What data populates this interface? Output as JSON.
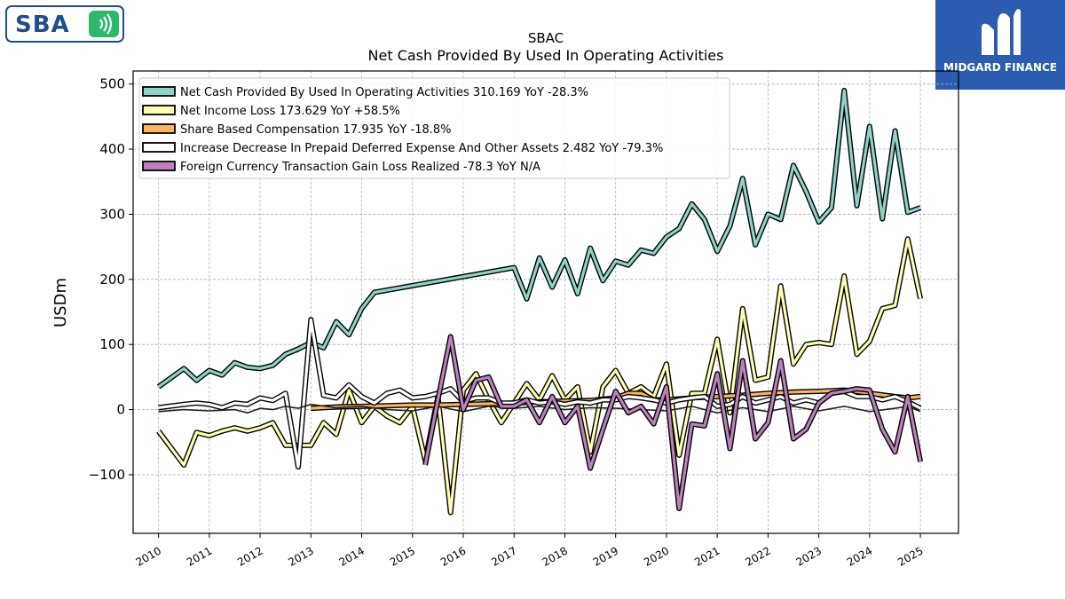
{
  "header": {
    "left_logo_text": "SBA",
    "left_logo_icon": "signal-waves-icon",
    "right_logo_text": "MIDGARD FINANCE",
    "right_logo_icon": "m-monogram-icon"
  },
  "chart_data": {
    "type": "line",
    "title": "SBAC",
    "subtitle": "Net Cash Provided By Used In Operating Activities",
    "xlabel": "",
    "ylabel": "USDm",
    "xlim": [
      2009.5,
      2025.75
    ],
    "ylim": [
      -190,
      520
    ],
    "yticks": [
      -100,
      0,
      100,
      200,
      300,
      400,
      500
    ],
    "ytick_labels": [
      "−100",
      "0",
      "100",
      "200",
      "300",
      "400",
      "500"
    ],
    "xticks": [
      2010,
      2011,
      2012,
      2013,
      2014,
      2015,
      2016,
      2017,
      2018,
      2019,
      2020,
      2021,
      2022,
      2023,
      2024,
      2025
    ],
    "xtick_labels": [
      "2010",
      "2011",
      "2012",
      "2013",
      "2014",
      "2015",
      "2016",
      "2017",
      "2018",
      "2019",
      "2020",
      "2021",
      "2022",
      "2023",
      "2024",
      "2025"
    ],
    "grid": true,
    "legend_position": "top-left",
    "series": [
      {
        "name": "Net Cash Provided By Used In Operating Activities  310.169 YoY -28.3%",
        "color": "#8dd3c7",
        "x": [
          2010.0,
          2010.5,
          2010.75,
          2011.0,
          2011.25,
          2011.5,
          2011.75,
          2012.0,
          2012.25,
          2012.5,
          2012.75,
          2013.0,
          2013.25,
          2013.5,
          2013.75,
          2014.0,
          2014.25,
          2017.0,
          2017.25,
          2017.5,
          2017.75,
          2018.0,
          2018.25,
          2018.5,
          2018.75,
          2019.0,
          2019.25,
          2019.5,
          2019.75,
          2020.0,
          2020.25,
          2020.5,
          2020.75,
          2021.0,
          2021.25,
          2021.5,
          2021.75,
          2022.0,
          2022.25,
          2022.5,
          2022.75,
          2023.0,
          2023.25,
          2023.5,
          2023.75,
          2024.0,
          2024.25,
          2024.5,
          2024.75,
          2025.0
        ],
        "y": [
          35,
          63,
          45,
          60,
          53,
          72,
          65,
          63,
          68,
          85,
          93,
          103,
          95,
          135,
          115,
          155,
          180,
          218,
          170,
          233,
          188,
          230,
          178,
          248,
          198,
          228,
          222,
          245,
          240,
          265,
          278,
          316,
          292,
          243,
          282,
          355,
          253,
          300,
          292,
          375,
          335,
          288,
          310,
          490,
          313,
          435,
          293,
          428,
          303,
          310
        ]
      },
      {
        "name": "Net Income Loss  173.629 YoY +58.5%",
        "color": "#ffffb3",
        "x": [
          2010.0,
          2010.5,
          2010.75,
          2011.0,
          2011.25,
          2011.5,
          2011.75,
          2012.0,
          2012.25,
          2012.5,
          2012.75,
          2013.0,
          2013.25,
          2013.5,
          2013.75,
          2014.0,
          2014.25,
          2014.5,
          2014.75,
          2015.0,
          2015.25,
          2015.5,
          2015.75,
          2016.0,
          2016.25,
          2016.5,
          2016.75,
          2017.0,
          2017.25,
          2017.5,
          2017.75,
          2018.0,
          2018.25,
          2018.5,
          2018.75,
          2019.0,
          2019.25,
          2019.5,
          2019.75,
          2020.0,
          2020.25,
          2020.5,
          2020.75,
          2021.0,
          2021.25,
          2021.5,
          2021.75,
          2022.0,
          2022.25,
          2022.5,
          2022.75,
          2023.0,
          2023.25,
          2023.5,
          2023.75,
          2024.0,
          2024.25,
          2024.5,
          2024.75,
          2025.0
        ],
        "y": [
          -33,
          -85,
          -35,
          -40,
          -33,
          -28,
          -33,
          -28,
          -20,
          -55,
          -55,
          -55,
          -20,
          -38,
          30,
          -20,
          5,
          -10,
          -20,
          5,
          -78,
          20,
          -158,
          30,
          55,
          15,
          -20,
          10,
          40,
          15,
          52,
          15,
          35,
          -65,
          35,
          60,
          25,
          35,
          20,
          70,
          -70,
          25,
          25,
          108,
          -5,
          155,
          45,
          50,
          190,
          70,
          100,
          103,
          100,
          205,
          85,
          105,
          155,
          160,
          262,
          170
        ]
      },
      {
        "name": "Share Based Compensation  17.935 YoY -18.8%",
        "color": "#fdb462",
        "x": [
          2013.0,
          2013.5,
          2014.0,
          2014.5,
          2015.0,
          2015.5,
          2016.0,
          2016.5,
          2017.0,
          2017.5,
          2018.0,
          2018.5,
          2019.0,
          2019.25,
          2019.5,
          2019.75,
          2020.0,
          2020.5,
          2021.0,
          2021.5,
          2022.0,
          2022.5,
          2023.0,
          2023.5,
          2024.0,
          2024.5,
          2024.75,
          2025.0
        ],
        "y": [
          2,
          4,
          5,
          6,
          7,
          7,
          8,
          9,
          10,
          12,
          13,
          14,
          18,
          25,
          25,
          15,
          15,
          18,
          20,
          22,
          25,
          27,
          28,
          30,
          25,
          20,
          18,
          20
        ]
      },
      {
        "name": "Increase Decrease In Prepaid Deferred Expense And Other Assets  2.482 YoY -79.3%",
        "color": "#ffffff",
        "x": [
          2010.0,
          2010.5,
          2010.75,
          2011.0,
          2011.25,
          2011.5,
          2011.75,
          2012.0,
          2012.25,
          2012.5,
          2012.75,
          2013.0,
          2013.25,
          2013.5,
          2013.75,
          2014.0,
          2014.25,
          2014.5,
          2014.75,
          2015.0,
          2015.25,
          2015.5,
          2015.75,
          2016.0,
          2016.25,
          2016.5,
          2016.75,
          2017.0,
          2017.25,
          2017.5,
          2017.75,
          2018.0,
          2018.25,
          2018.5,
          2018.75,
          2019.0,
          2019.25,
          2019.5,
          2019.75,
          2020.0,
          2020.25,
          2020.5,
          2020.75,
          2021.0,
          2021.25,
          2021.5,
          2021.75,
          2022.0,
          2022.25,
          2022.5,
          2022.75,
          2023.0,
          2023.25,
          2023.5,
          2023.75,
          2024.0,
          2024.25,
          2024.5,
          2024.75,
          2025.0
        ],
        "y": [
          3,
          8,
          10,
          8,
          3,
          10,
          8,
          18,
          14,
          25,
          -88,
          138,
          22,
          18,
          38,
          20,
          10,
          25,
          30,
          18,
          20,
          25,
          32,
          12,
          18,
          18,
          10,
          10,
          15,
          10,
          12,
          8,
          12,
          10,
          15,
          15,
          20,
          18,
          15,
          10,
          15,
          18,
          20,
          5,
          8,
          20,
          10,
          15,
          20,
          10,
          15,
          10,
          25,
          28,
          20,
          20,
          15,
          20,
          12,
          2
        ]
      },
      {
        "name": "Increase Decrease In Prepaid Deferred Expense And Other Assets (dark)",
        "color": "#222222",
        "hidden_from_legend": true,
        "x": [
          2010.0,
          2010.5,
          2011.0,
          2011.5,
          2011.75,
          2012.0,
          2012.25,
          2012.5,
          2012.75,
          2013.0,
          2013.5,
          2014.0,
          2014.5,
          2015.0,
          2015.5,
          2016.0,
          2016.5,
          2017.0,
          2017.5,
          2018.0,
          2018.5,
          2019.0,
          2019.5,
          2020.0,
          2020.5,
          2021.0,
          2021.5,
          2022.0,
          2022.5,
          2023.0,
          2023.5,
          2024.0,
          2024.5,
          2024.75,
          2025.0
        ],
        "y": [
          -3,
          0,
          -2,
          0,
          -5,
          2,
          0,
          5,
          2,
          8,
          3,
          5,
          0,
          -2,
          5,
          -3,
          5,
          2,
          5,
          0,
          3,
          2,
          0,
          -2,
          5,
          -5,
          3,
          -3,
          5,
          -2,
          5,
          -3,
          2,
          5,
          -3
        ]
      },
      {
        "name": "Foreign Currency Transaction Gain Loss Realized  -78.3 YoY N/A",
        "color": "#bc80bd",
        "x": [
          2015.25,
          2015.5,
          2015.75,
          2016.0,
          2016.25,
          2016.5,
          2016.75,
          2017.0,
          2017.25,
          2017.5,
          2017.75,
          2018.0,
          2018.25,
          2018.5,
          2018.75,
          2019.0,
          2019.25,
          2019.5,
          2019.75,
          2020.0,
          2020.25,
          2020.5,
          2020.75,
          2021.0,
          2021.25,
          2021.5,
          2021.75,
          2022.0,
          2022.25,
          2022.5,
          2022.75,
          2023.0,
          2023.25,
          2023.5,
          2023.75,
          2024.0,
          2024.25,
          2024.5,
          2024.75,
          2025.0
        ],
        "y": [
          -85,
          15,
          112,
          0,
          45,
          50,
          5,
          5,
          15,
          -20,
          20,
          -20,
          5,
          -90,
          -30,
          28,
          -5,
          5,
          -22,
          35,
          -152,
          -22,
          -25,
          55,
          -60,
          75,
          -45,
          -20,
          75,
          -45,
          -30,
          10,
          25,
          28,
          32,
          30,
          -30,
          -65,
          20,
          -80
        ]
      }
    ]
  }
}
